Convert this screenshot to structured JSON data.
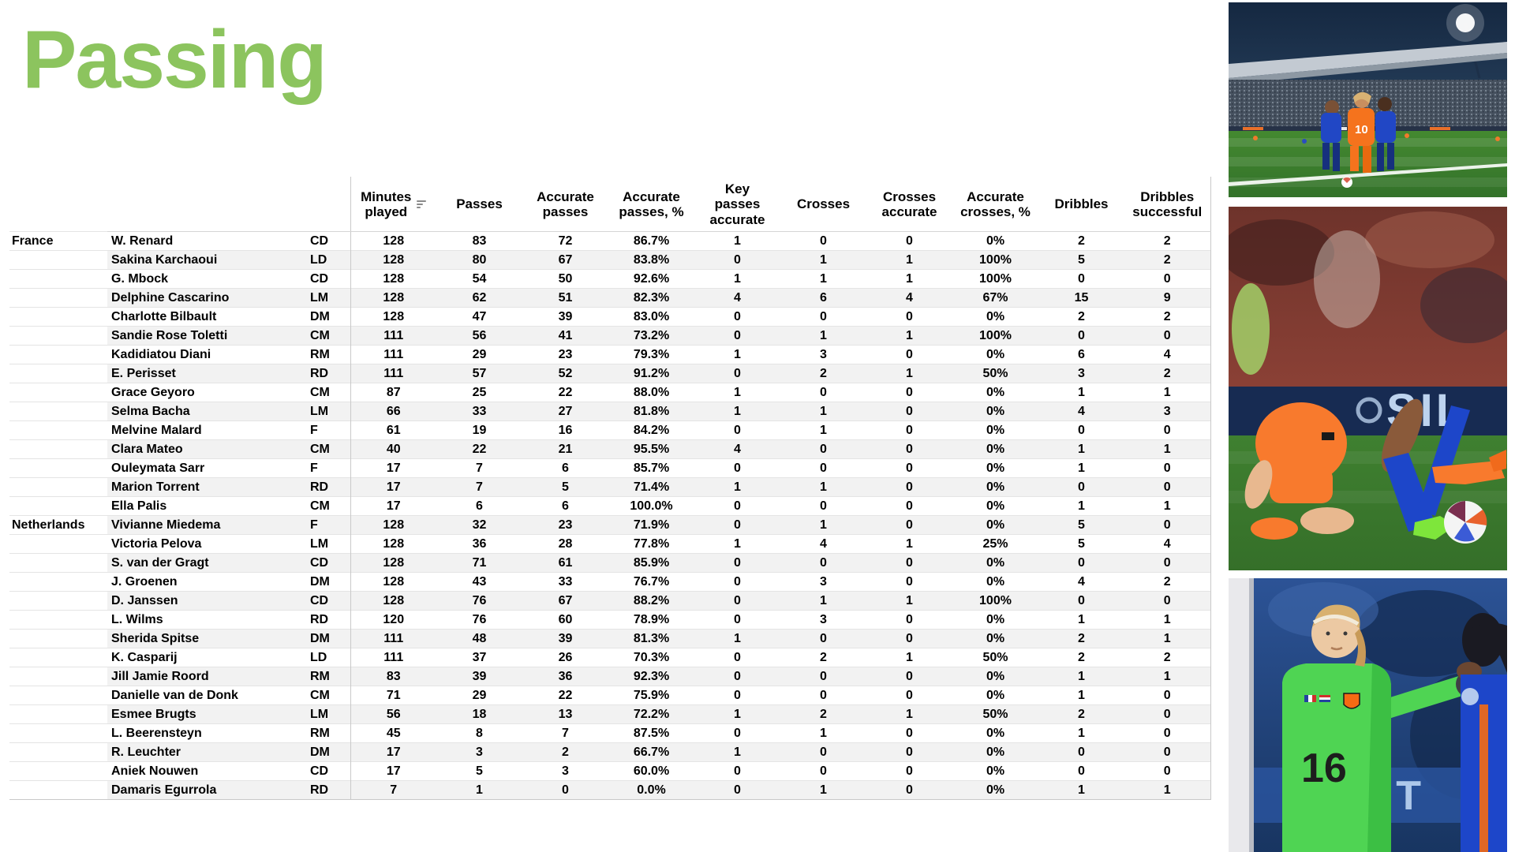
{
  "page": {
    "title": "Passing",
    "accent_color": "#8CC45E",
    "background": "#ffffff"
  },
  "icons": {
    "minutes_sort": "sort-descending"
  },
  "table": {
    "columns": [
      {
        "id": "minutes_played",
        "label": "Minutes\nplayed",
        "sortable": true
      },
      {
        "id": "passes",
        "label": "Passes"
      },
      {
        "id": "accurate_passes",
        "label": "Accurate\npasses"
      },
      {
        "id": "accurate_passes_pct",
        "label": "Accurate\npasses, %"
      },
      {
        "id": "key_passes_accurate",
        "label": "Key\npasses\naccurate"
      },
      {
        "id": "crosses",
        "label": "Crosses"
      },
      {
        "id": "crosses_accurate",
        "label": "Crosses\naccurate"
      },
      {
        "id": "accurate_crosses_pct",
        "label": "Accurate\ncrosses, %"
      },
      {
        "id": "dribbles",
        "label": "Dribbles"
      },
      {
        "id": "dribbles_successful",
        "label": "Dribbles\nsuccessful"
      }
    ],
    "groups": [
      {
        "team": "France",
        "players": [
          {
            "name": "W. Renard",
            "pos": "CD",
            "values": [
              "128",
              "83",
              "72",
              "86.7%",
              "1",
              "0",
              "0",
              "0%",
              "2",
              "2"
            ]
          },
          {
            "name": "Sakina Karchaoui",
            "pos": "LD",
            "values": [
              "128",
              "80",
              "67",
              "83.8%",
              "0",
              "1",
              "1",
              "100%",
              "5",
              "2"
            ]
          },
          {
            "name": "G. Mbock",
            "pos": "CD",
            "values": [
              "128",
              "54",
              "50",
              "92.6%",
              "1",
              "1",
              "1",
              "100%",
              "0",
              "0"
            ]
          },
          {
            "name": "Delphine Cascarino",
            "pos": "LM",
            "values": [
              "128",
              "62",
              "51",
              "82.3%",
              "4",
              "6",
              "4",
              "67%",
              "15",
              "9"
            ]
          },
          {
            "name": "Charlotte Bilbault",
            "pos": "DM",
            "values": [
              "128",
              "47",
              "39",
              "83.0%",
              "0",
              "0",
              "0",
              "0%",
              "2",
              "2"
            ]
          },
          {
            "name": "Sandie Rose Toletti",
            "pos": "CM",
            "values": [
              "111",
              "56",
              "41",
              "73.2%",
              "0",
              "1",
              "1",
              "100%",
              "0",
              "0"
            ]
          },
          {
            "name": "Kadidiatou Diani",
            "pos": "RM",
            "values": [
              "111",
              "29",
              "23",
              "79.3%",
              "1",
              "3",
              "0",
              "0%",
              "6",
              "4"
            ]
          },
          {
            "name": "E. Perisset",
            "pos": "RD",
            "values": [
              "111",
              "57",
              "52",
              "91.2%",
              "0",
              "2",
              "1",
              "50%",
              "3",
              "2"
            ]
          },
          {
            "name": "Grace Geyoro",
            "pos": "CM",
            "values": [
              "87",
              "25",
              "22",
              "88.0%",
              "1",
              "0",
              "0",
              "0%",
              "1",
              "1"
            ]
          },
          {
            "name": "Selma Bacha",
            "pos": "LM",
            "values": [
              "66",
              "33",
              "27",
              "81.8%",
              "1",
              "1",
              "0",
              "0%",
              "4",
              "3"
            ]
          },
          {
            "name": "Melvine Malard",
            "pos": "F",
            "values": [
              "61",
              "19",
              "16",
              "84.2%",
              "0",
              "1",
              "0",
              "0%",
              "0",
              "0"
            ]
          },
          {
            "name": "Clara Mateo",
            "pos": "CM",
            "values": [
              "40",
              "22",
              "21",
              "95.5%",
              "4",
              "0",
              "0",
              "0%",
              "1",
              "1"
            ]
          },
          {
            "name": "Ouleymata Sarr",
            "pos": "F",
            "values": [
              "17",
              "7",
              "6",
              "85.7%",
              "0",
              "0",
              "0",
              "0%",
              "1",
              "0"
            ]
          },
          {
            "name": "Marion Torrent",
            "pos": "RD",
            "values": [
              "17",
              "7",
              "5",
              "71.4%",
              "1",
              "1",
              "0",
              "0%",
              "0",
              "0"
            ]
          },
          {
            "name": "Ella Palis",
            "pos": "CM",
            "values": [
              "17",
              "6",
              "6",
              "100.0%",
              "0",
              "0",
              "0",
              "0%",
              "1",
              "1"
            ]
          }
        ]
      },
      {
        "team": "Netherlands",
        "players": [
          {
            "name": "Vivianne Miedema",
            "pos": "F",
            "values": [
              "128",
              "32",
              "23",
              "71.9%",
              "0",
              "1",
              "0",
              "0%",
              "5",
              "0"
            ]
          },
          {
            "name": "Victoria Pelova",
            "pos": "LM",
            "values": [
              "128",
              "36",
              "28",
              "77.8%",
              "1",
              "4",
              "1",
              "25%",
              "5",
              "4"
            ]
          },
          {
            "name": "S. van der Gragt",
            "pos": "CD",
            "values": [
              "128",
              "71",
              "61",
              "85.9%",
              "0",
              "0",
              "0",
              "0%",
              "0",
              "0"
            ]
          },
          {
            "name": "J. Groenen",
            "pos": "DM",
            "values": [
              "128",
              "43",
              "33",
              "76.7%",
              "0",
              "3",
              "0",
              "0%",
              "4",
              "2"
            ]
          },
          {
            "name": "D. Janssen",
            "pos": "CD",
            "values": [
              "128",
              "76",
              "67",
              "88.2%",
              "0",
              "1",
              "1",
              "100%",
              "0",
              "0"
            ]
          },
          {
            "name": "L. Wilms",
            "pos": "RD",
            "values": [
              "120",
              "76",
              "60",
              "78.9%",
              "0",
              "3",
              "0",
              "0%",
              "1",
              "1"
            ]
          },
          {
            "name": "Sherida Spitse",
            "pos": "DM",
            "values": [
              "111",
              "48",
              "39",
              "81.3%",
              "1",
              "0",
              "0",
              "0%",
              "2",
              "1"
            ]
          },
          {
            "name": "K. Casparij",
            "pos": "LD",
            "values": [
              "111",
              "37",
              "26",
              "70.3%",
              "0",
              "2",
              "1",
              "50%",
              "2",
              "2"
            ]
          },
          {
            "name": "Jill Jamie Roord",
            "pos": "RM",
            "values": [
              "83",
              "39",
              "36",
              "92.3%",
              "0",
              "0",
              "0",
              "0%",
              "1",
              "1"
            ]
          },
          {
            "name": "Danielle van de Donk",
            "pos": "CM",
            "values": [
              "71",
              "29",
              "22",
              "75.9%",
              "0",
              "0",
              "0",
              "0%",
              "1",
              "0"
            ]
          },
          {
            "name": "Esmee Brugts",
            "pos": "LM",
            "values": [
              "56",
              "18",
              "13",
              "72.2%",
              "1",
              "2",
              "1",
              "50%",
              "2",
              "0"
            ]
          },
          {
            "name": "L. Beerensteyn",
            "pos": "RM",
            "values": [
              "45",
              "8",
              "7",
              "87.5%",
              "0",
              "1",
              "0",
              "0%",
              "1",
              "0"
            ]
          },
          {
            "name": "R. Leuchter",
            "pos": "DM",
            "values": [
              "17",
              "3",
              "2",
              "66.7%",
              "1",
              "0",
              "0",
              "0%",
              "0",
              "0"
            ]
          },
          {
            "name": "Aniek Nouwen",
            "pos": "CD",
            "values": [
              "17",
              "5",
              "3",
              "60.0%",
              "0",
              "0",
              "0",
              "0%",
              "0",
              "0"
            ]
          },
          {
            "name": "Damaris Egurrola",
            "pos": "RD",
            "values": [
              "7",
              "1",
              "0",
              "0.0%",
              "0",
              "1",
              "0",
              "0%",
              "1",
              "1"
            ]
          }
        ]
      }
    ]
  },
  "photos": [
    {
      "name": "stadium-action-photo",
      "jersey_number": "10"
    },
    {
      "name": "tackle-close-up-photo",
      "board_text": "SIL"
    },
    {
      "name": "goalkeeper-photo",
      "jersey_number": "16",
      "board_text": "ECT"
    }
  ]
}
